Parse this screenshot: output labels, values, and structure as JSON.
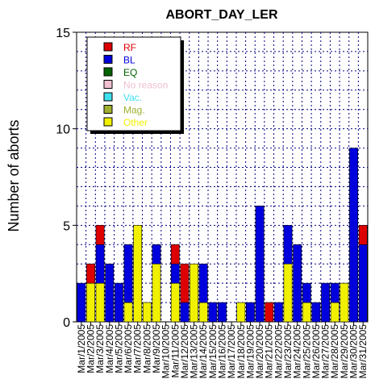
{
  "chart_data": {
    "type": "bar",
    "stacked": true,
    "title": "ABORT_DAY_LER",
    "xlabel": "",
    "ylabel": "Number of aborts",
    "ylim": [
      0,
      15
    ],
    "yticks": [
      0,
      5,
      10,
      15
    ],
    "grid": true,
    "legend_position": "top-left",
    "categories": [
      "Mar/1/2005",
      "Mar/2/2005",
      "Mar/3/2005",
      "Mar/4/2005",
      "Mar/5/2005",
      "Mar/6/2005",
      "Mar/7/2005",
      "Mar/8/2005",
      "Mar/9/2005",
      "Mar/10/2005",
      "Mar/11/2005",
      "Mar/12/2005",
      "Mar/13/2005",
      "Mar/14/2005",
      "Mar/15/2005",
      "Mar/16/2005",
      "Mar/17/2005",
      "Mar/18/2005",
      "Mar/19/2005",
      "Mar/20/2005",
      "Mar/21/2005",
      "Mar/22/2005",
      "Mar/23/2005",
      "Mar/24/2005",
      "Mar/25/2005",
      "Mar/26/2005",
      "Mar/27/2005",
      "Mar/28/2005",
      "Mar/29/2005",
      "Mar/30/2005",
      "Mar/31/2005"
    ],
    "series": [
      {
        "name": "RF",
        "color": "#dd0000",
        "values": [
          0,
          1,
          1,
          0,
          0,
          0,
          0,
          0,
          0,
          0,
          1,
          2,
          0,
          0,
          0,
          0,
          0,
          0,
          0,
          0,
          1,
          0,
          0,
          0,
          0,
          0,
          0,
          0,
          0,
          0,
          1
        ]
      },
      {
        "name": "BL",
        "color": "#0000dd",
        "values": [
          2,
          0,
          2,
          3,
          2,
          3,
          0,
          0,
          1,
          0,
          1,
          1,
          0,
          2,
          1,
          1,
          0,
          0,
          1,
          6,
          0,
          1,
          2,
          4,
          1,
          1,
          2,
          1,
          0,
          9,
          4
        ]
      },
      {
        "name": "EQ",
        "color": "#006400",
        "values": [
          0,
          0,
          0,
          0,
          0,
          0,
          0,
          0,
          0,
          0,
          0,
          0,
          0,
          0,
          0,
          0,
          0,
          0,
          0,
          0,
          0,
          0,
          0,
          0,
          0,
          0,
          0,
          0,
          0,
          0,
          0
        ]
      },
      {
        "name": "No reason",
        "color": "#f0c0d0",
        "values": [
          0,
          0,
          0,
          0,
          0,
          0,
          0,
          0,
          0,
          0,
          0,
          0,
          0,
          0,
          0,
          0,
          0,
          0,
          0,
          0,
          0,
          0,
          0,
          0,
          0,
          0,
          0,
          0,
          0,
          0,
          0
        ]
      },
      {
        "name": "Vac.",
        "color": "#40e0f0",
        "values": [
          0,
          0,
          0,
          0,
          0,
          0,
          0,
          0,
          0,
          0,
          0,
          0,
          0,
          0,
          0,
          0,
          0,
          0,
          0,
          0,
          0,
          0,
          0,
          0,
          0,
          0,
          0,
          0,
          0,
          0,
          0
        ]
      },
      {
        "name": "Mag.",
        "color": "#a0b030",
        "values": [
          0,
          0,
          0,
          0,
          0,
          0,
          0,
          0,
          0,
          0,
          0,
          0,
          0,
          0,
          0,
          0,
          0,
          0,
          0,
          0,
          0,
          0,
          0,
          0,
          0,
          0,
          0,
          0,
          0,
          0,
          0
        ]
      },
      {
        "name": "Other",
        "color": "#f0f000",
        "values": [
          0,
          2,
          2,
          0,
          0,
          1,
          5,
          1,
          3,
          0,
          2,
          0,
          3,
          1,
          0,
          0,
          0,
          1,
          0,
          0,
          0,
          0,
          3,
          0,
          1,
          0,
          0,
          1,
          2,
          0,
          0
        ]
      }
    ]
  }
}
